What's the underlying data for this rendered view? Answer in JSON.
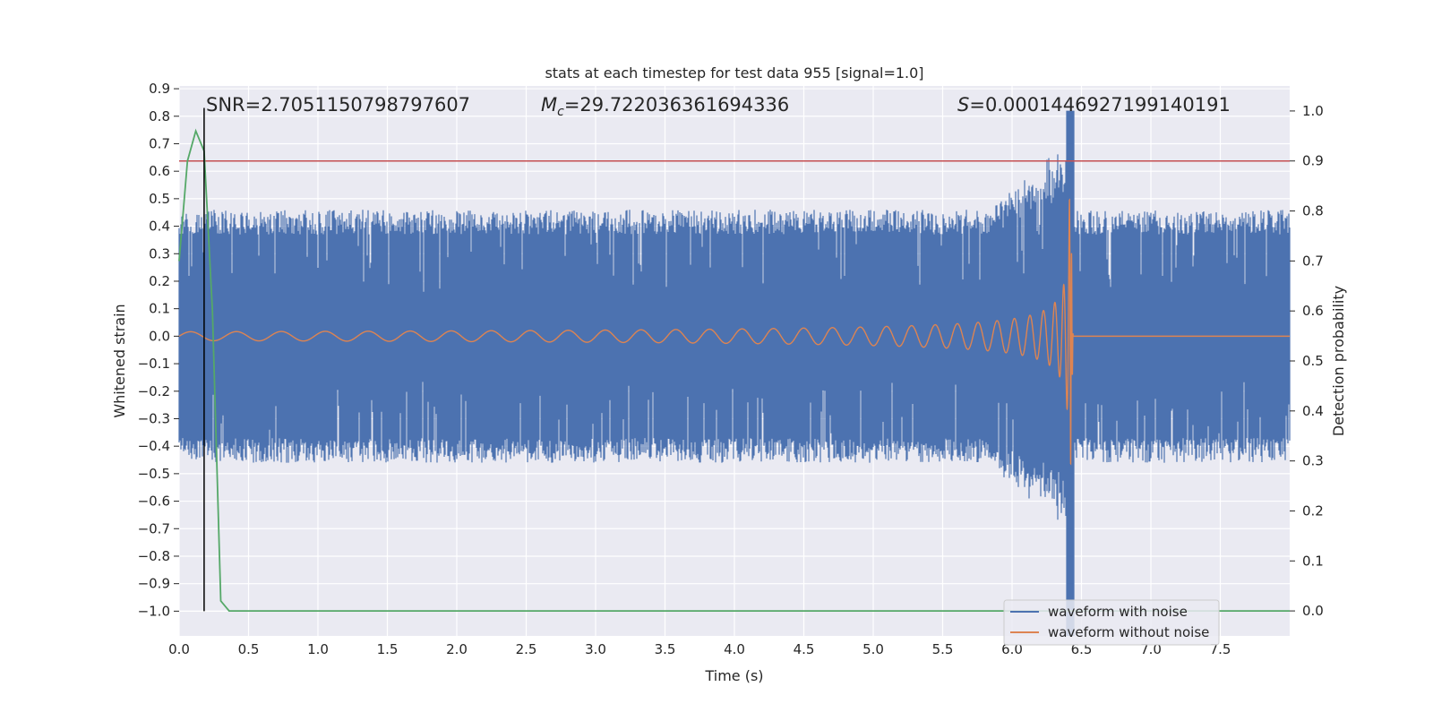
{
  "chart_data": {
    "type": "line",
    "title": "stats at each timestep for test data 955 [signal=1.0]",
    "xlabel": "Time (s)",
    "ylabel": "Whitened strain",
    "y2label": "Detection probability",
    "xlim": [
      0.0,
      8.0
    ],
    "ylim": [
      -1.09,
      0.91
    ],
    "y2lim": [
      -0.05,
      1.05
    ],
    "xticks": [
      0.0,
      0.5,
      1.0,
      1.5,
      2.0,
      2.5,
      3.0,
      3.5,
      4.0,
      4.5,
      5.0,
      5.5,
      6.0,
      6.5,
      7.0,
      7.5
    ],
    "xtick_labels": [
      "0.0",
      "0.5",
      "1.0",
      "1.5",
      "2.0",
      "2.5",
      "3.0",
      "3.5",
      "4.0",
      "4.5",
      "5.0",
      "5.5",
      "6.0",
      "6.5",
      "7.0",
      "7.5"
    ],
    "yticks": [
      0.9,
      0.8,
      0.7,
      0.6,
      0.5,
      0.4,
      0.3,
      0.2,
      0.1,
      0.0,
      -0.1,
      -0.2,
      -0.3,
      -0.4,
      -0.5,
      -0.6,
      -0.7,
      -0.8,
      -0.9,
      -1.0
    ],
    "ytick_labels": [
      "0.9",
      "0.8",
      "0.7",
      "0.6",
      "0.5",
      "0.4",
      "0.3",
      "0.2",
      "0.1",
      "0.0",
      "−0.1",
      "−0.2",
      "−0.3",
      "−0.4",
      "−0.5",
      "−0.6",
      "−0.7",
      "−0.8",
      "−0.9",
      "−1.0"
    ],
    "y2ticks": [
      1.0,
      0.9,
      0.8,
      0.7,
      0.6,
      0.5,
      0.4,
      0.3,
      0.2,
      0.1,
      0.0
    ],
    "y2tick_labels": [
      "1.0",
      "0.9",
      "0.8",
      "0.7",
      "0.6",
      "0.5",
      "0.4",
      "0.3",
      "0.2",
      "0.1",
      "0.0"
    ],
    "grid": true,
    "legend_position": "lower-right",
    "annotations": {
      "snr": "SNR=2.7051150798797607",
      "mc_symbol": "M",
      "mc_subscript": "c",
      "mc_value": "=29.722036361694336",
      "s_symbol": "S",
      "s_value": "=0.0001446927199140191"
    },
    "series": [
      {
        "name": "waveform with noise",
        "color": "#4c72b0",
        "description_type": "noise",
        "typical_amplitude": 0.46,
        "merger_time": 6.42,
        "merger_min": -1.09,
        "merger_max": 0.82
      },
      {
        "name": "waveform without noise",
        "color": "#dd8452",
        "description_type": "chirp",
        "merger_time": 6.42,
        "peak_amplitude": 0.53
      },
      {
        "name": "detection probability",
        "color": "#55a868",
        "axis": "right",
        "x": [
          0.0,
          0.06,
          0.12,
          0.18,
          0.24,
          0.3,
          0.36,
          8.0
        ],
        "values": [
          0.7,
          0.9,
          0.96,
          0.92,
          0.6,
          0.02,
          0.0,
          0.0
        ]
      }
    ],
    "threshold": {
      "axis": "right",
      "value": 0.9,
      "color": "#c44e52"
    },
    "marker_line": {
      "x": 0.18,
      "from": -1.0,
      "to": 0.83,
      "color": "#000000"
    }
  }
}
